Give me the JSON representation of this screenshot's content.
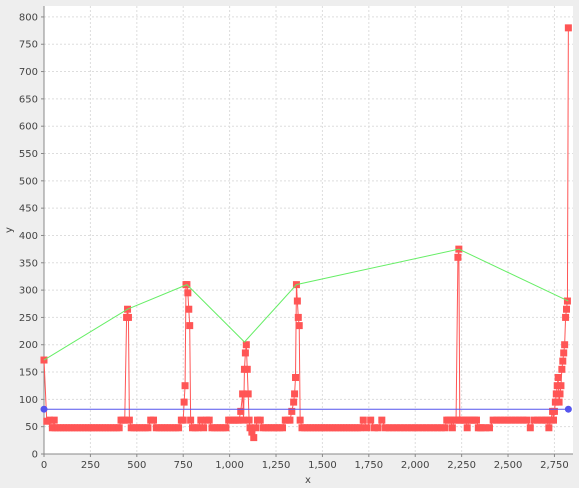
{
  "chart_data": {
    "type": "line",
    "title": "",
    "xlabel": "x",
    "ylabel": "y",
    "xlim": [
      0,
      2850
    ],
    "ylim": [
      0,
      820
    ],
    "grid": true,
    "background": "#ffffff",
    "x_ticks": [
      0,
      250,
      500,
      750,
      1000,
      1250,
      1500,
      1750,
      2000,
      2250,
      2500,
      2750
    ],
    "x_tick_labels": [
      "0",
      "250",
      "500",
      "750",
      "1,000",
      "1,250",
      "1,500",
      "1,750",
      "2,000",
      "2,250",
      "2,500",
      "2,750"
    ],
    "y_ticks": [
      0,
      50,
      100,
      150,
      200,
      250,
      300,
      350,
      400,
      450,
      500,
      550,
      600,
      650,
      700,
      750,
      800
    ],
    "y_tick_labels": [
      "0",
      "50",
      "100",
      "150",
      "200",
      "250",
      "300",
      "350",
      "400",
      "450",
      "500",
      "550",
      "600",
      "650",
      "700",
      "750",
      "800"
    ],
    "series": [
      {
        "color": "#ff5555",
        "marker": "square",
        "points": [
          [
            0,
            172
          ],
          [
            15,
            60
          ],
          [
            30,
            62
          ],
          [
            45,
            48
          ],
          [
            55,
            62
          ],
          [
            60,
            48
          ],
          [
            75,
            48
          ],
          [
            90,
            48
          ],
          [
            105,
            48
          ],
          [
            120,
            48
          ],
          [
            135,
            48
          ],
          [
            150,
            48
          ],
          [
            165,
            48
          ],
          [
            180,
            48
          ],
          [
            195,
            48
          ],
          [
            210,
            48
          ],
          [
            225,
            48
          ],
          [
            240,
            48
          ],
          [
            255,
            48
          ],
          [
            270,
            48
          ],
          [
            285,
            48
          ],
          [
            300,
            48
          ],
          [
            315,
            48
          ],
          [
            330,
            48
          ],
          [
            345,
            48
          ],
          [
            360,
            48
          ],
          [
            375,
            48
          ],
          [
            390,
            48
          ],
          [
            405,
            48
          ],
          [
            415,
            62
          ],
          [
            425,
            62
          ],
          [
            435,
            62
          ],
          [
            445,
            250
          ],
          [
            450,
            265
          ],
          [
            455,
            250
          ],
          [
            460,
            62
          ],
          [
            470,
            48
          ],
          [
            485,
            48
          ],
          [
            500,
            48
          ],
          [
            515,
            48
          ],
          [
            530,
            48
          ],
          [
            545,
            48
          ],
          [
            560,
            48
          ],
          [
            575,
            62
          ],
          [
            590,
            62
          ],
          [
            605,
            48
          ],
          [
            620,
            48
          ],
          [
            635,
            48
          ],
          [
            650,
            48
          ],
          [
            665,
            48
          ],
          [
            680,
            48
          ],
          [
            695,
            48
          ],
          [
            710,
            48
          ],
          [
            725,
            48
          ],
          [
            740,
            62
          ],
          [
            750,
            62
          ],
          [
            755,
            95
          ],
          [
            760,
            125
          ],
          [
            765,
            310
          ],
          [
            770,
            310
          ],
          [
            775,
            295
          ],
          [
            780,
            265
          ],
          [
            785,
            235
          ],
          [
            790,
            62
          ],
          [
            800,
            48
          ],
          [
            815,
            48
          ],
          [
            830,
            48
          ],
          [
            845,
            62
          ],
          [
            860,
            48
          ],
          [
            875,
            62
          ],
          [
            890,
            62
          ],
          [
            905,
            48
          ],
          [
            920,
            48
          ],
          [
            935,
            48
          ],
          [
            950,
            48
          ],
          [
            965,
            48
          ],
          [
            980,
            48
          ],
          [
            995,
            62
          ],
          [
            1005,
            62
          ],
          [
            1020,
            62
          ],
          [
            1030,
            62
          ],
          [
            1040,
            62
          ],
          [
            1050,
            62
          ],
          [
            1060,
            78
          ],
          [
            1070,
            110
          ],
          [
            1075,
            62
          ],
          [
            1080,
            155
          ],
          [
            1085,
            185
          ],
          [
            1090,
            200
          ],
          [
            1095,
            155
          ],
          [
            1100,
            110
          ],
          [
            1105,
            62
          ],
          [
            1110,
            48
          ],
          [
            1120,
            40
          ],
          [
            1130,
            30
          ],
          [
            1140,
            48
          ],
          [
            1150,
            62
          ],
          [
            1165,
            62
          ],
          [
            1180,
            48
          ],
          [
            1195,
            48
          ],
          [
            1210,
            48
          ],
          [
            1225,
            48
          ],
          [
            1240,
            48
          ],
          [
            1255,
            48
          ],
          [
            1270,
            48
          ],
          [
            1285,
            48
          ],
          [
            1300,
            62
          ],
          [
            1315,
            62
          ],
          [
            1325,
            62
          ],
          [
            1335,
            78
          ],
          [
            1345,
            95
          ],
          [
            1350,
            110
          ],
          [
            1355,
            140
          ],
          [
            1360,
            310
          ],
          [
            1365,
            280
          ],
          [
            1370,
            250
          ],
          [
            1375,
            235
          ],
          [
            1380,
            62
          ],
          [
            1390,
            48
          ],
          [
            1405,
            48
          ],
          [
            1420,
            48
          ],
          [
            1435,
            48
          ],
          [
            1450,
            48
          ],
          [
            1465,
            48
          ],
          [
            1480,
            48
          ],
          [
            1495,
            48
          ],
          [
            1510,
            48
          ],
          [
            1525,
            48
          ],
          [
            1540,
            48
          ],
          [
            1555,
            48
          ],
          [
            1570,
            48
          ],
          [
            1585,
            48
          ],
          [
            1600,
            48
          ],
          [
            1615,
            48
          ],
          [
            1630,
            48
          ],
          [
            1645,
            48
          ],
          [
            1660,
            48
          ],
          [
            1675,
            48
          ],
          [
            1690,
            48
          ],
          [
            1705,
            48
          ],
          [
            1720,
            62
          ],
          [
            1740,
            48
          ],
          [
            1760,
            62
          ],
          [
            1780,
            48
          ],
          [
            1800,
            48
          ],
          [
            1820,
            62
          ],
          [
            1840,
            48
          ],
          [
            1860,
            48
          ],
          [
            1880,
            48
          ],
          [
            1900,
            48
          ],
          [
            1920,
            48
          ],
          [
            1940,
            48
          ],
          [
            1960,
            48
          ],
          [
            1980,
            48
          ],
          [
            2000,
            48
          ],
          [
            2020,
            48
          ],
          [
            2040,
            48
          ],
          [
            2060,
            48
          ],
          [
            2080,
            48
          ],
          [
            2100,
            48
          ],
          [
            2120,
            48
          ],
          [
            2140,
            48
          ],
          [
            2160,
            48
          ],
          [
            2170,
            62
          ],
          [
            2180,
            62
          ],
          [
            2190,
            62
          ],
          [
            2200,
            48
          ],
          [
            2210,
            62
          ],
          [
            2220,
            62
          ],
          [
            2230,
            360
          ],
          [
            2235,
            375
          ],
          [
            2240,
            62
          ],
          [
            2250,
            62
          ],
          [
            2260,
            62
          ],
          [
            2270,
            62
          ],
          [
            2280,
            48
          ],
          [
            2290,
            62
          ],
          [
            2300,
            62
          ],
          [
            2310,
            62
          ],
          [
            2320,
            62
          ],
          [
            2330,
            62
          ],
          [
            2340,
            48
          ],
          [
            2350,
            48
          ],
          [
            2360,
            48
          ],
          [
            2380,
            48
          ],
          [
            2400,
            48
          ],
          [
            2420,
            62
          ],
          [
            2440,
            62
          ],
          [
            2460,
            62
          ],
          [
            2480,
            62
          ],
          [
            2500,
            62
          ],
          [
            2520,
            62
          ],
          [
            2540,
            62
          ],
          [
            2560,
            62
          ],
          [
            2580,
            62
          ],
          [
            2600,
            62
          ],
          [
            2620,
            48
          ],
          [
            2640,
            62
          ],
          [
            2660,
            62
          ],
          [
            2680,
            62
          ],
          [
            2700,
            62
          ],
          [
            2710,
            62
          ],
          [
            2720,
            48
          ],
          [
            2730,
            62
          ],
          [
            2740,
            78
          ],
          [
            2745,
            62
          ],
          [
            2750,
            78
          ],
          [
            2755,
            95
          ],
          [
            2760,
            110
          ],
          [
            2765,
            125
          ],
          [
            2770,
            140
          ],
          [
            2775,
            95
          ],
          [
            2780,
            110
          ],
          [
            2785,
            125
          ],
          [
            2790,
            155
          ],
          [
            2795,
            170
          ],
          [
            2800,
            185
          ],
          [
            2805,
            200
          ],
          [
            2810,
            250
          ],
          [
            2815,
            265
          ],
          [
            2820,
            280
          ],
          [
            2825,
            780
          ]
        ]
      },
      {
        "color": "#66ee66",
        "marker": "none",
        "points": [
          [
            0,
            172
          ],
          [
            450,
            265
          ],
          [
            770,
            310
          ],
          [
            1080,
            205
          ],
          [
            1360,
            310
          ],
          [
            2235,
            375
          ],
          [
            2825,
            280
          ]
        ]
      },
      {
        "color": "#5555ee",
        "marker": "circle-ends",
        "points": [
          [
            0,
            82
          ],
          [
            2825,
            82
          ]
        ]
      }
    ]
  }
}
